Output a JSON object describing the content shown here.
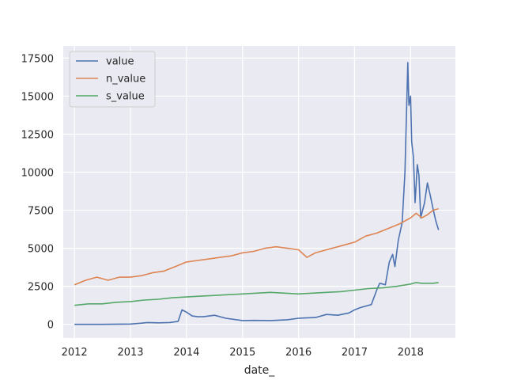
{
  "chart_data": {
    "type": "line",
    "title": "",
    "xlabel": "date_",
    "ylabel": "",
    "xlim": [
      2011.8,
      2018.8
    ],
    "ylim": [
      -900,
      18300
    ],
    "grid": true,
    "legend": "top-left",
    "x_ticks": [
      2012,
      2013,
      2014,
      2015,
      2016,
      2017,
      2018
    ],
    "x_tick_labels": [
      "2012",
      "2013",
      "2014",
      "2015",
      "2016",
      "2017",
      "2018"
    ],
    "y_ticks": [
      0,
      2500,
      5000,
      7500,
      10000,
      12500,
      15000,
      17500
    ],
    "y_tick_labels": [
      "0",
      "2500",
      "5000",
      "7500",
      "10000",
      "12500",
      "15000",
      "17500"
    ],
    "series": [
      {
        "name": "value",
        "color": "#4c72b0",
        "x": [
          2012.0,
          2012.5,
          2013.0,
          2013.2,
          2013.3,
          2013.5,
          2013.7,
          2013.85,
          2013.92,
          2014.0,
          2014.1,
          2014.2,
          2014.3,
          2014.5,
          2014.7,
          2015.0,
          2015.2,
          2015.5,
          2015.8,
          2016.0,
          2016.3,
          2016.5,
          2016.7,
          2016.9,
          2017.0,
          2017.1,
          2017.3,
          2017.4,
          2017.45,
          2017.55,
          2017.62,
          2017.68,
          2017.72,
          2017.78,
          2017.85,
          2017.9,
          2017.95,
          2017.97,
          2018.0,
          2018.02,
          2018.05,
          2018.08,
          2018.12,
          2018.15,
          2018.18,
          2018.25,
          2018.3,
          2018.35,
          2018.4,
          2018.45,
          2018.5
        ],
        "y": [
          0,
          0,
          20,
          80,
          120,
          100,
          120,
          200,
          950,
          800,
          550,
          500,
          500,
          600,
          400,
          250,
          260,
          250,
          300,
          400,
          450,
          650,
          600,
          750,
          950,
          1100,
          1300,
          2300,
          2700,
          2600,
          4100,
          4600,
          3800,
          5500,
          6700,
          10000,
          17200,
          14400,
          15000,
          12000,
          11000,
          8000,
          10500,
          9800,
          7000,
          8000,
          9300,
          8500,
          7600,
          6800,
          6200
        ]
      },
      {
        "name": "n_value",
        "color": "#dd8452",
        "x": [
          2012.0,
          2012.2,
          2012.4,
          2012.6,
          2012.8,
          2013.0,
          2013.2,
          2013.4,
          2013.6,
          2013.8,
          2014.0,
          2014.2,
          2014.4,
          2014.6,
          2014.8,
          2015.0,
          2015.2,
          2015.4,
          2015.6,
          2015.8,
          2016.0,
          2016.15,
          2016.3,
          2016.5,
          2016.7,
          2016.9,
          2017.0,
          2017.2,
          2017.4,
          2017.6,
          2017.8,
          2018.0,
          2018.1,
          2018.2,
          2018.3,
          2018.4,
          2018.5
        ],
        "y": [
          2600,
          2900,
          3100,
          2900,
          3100,
          3100,
          3200,
          3400,
          3500,
          3800,
          4100,
          4200,
          4300,
          4400,
          4500,
          4700,
          4800,
          5000,
          5100,
          5000,
          4900,
          4400,
          4700,
          4900,
          5100,
          5300,
          5400,
          5800,
          6000,
          6300,
          6600,
          7000,
          7300,
          7000,
          7200,
          7500,
          7600
        ]
      },
      {
        "name": "s_value",
        "color": "#55a868",
        "x": [
          2012.0,
          2012.25,
          2012.5,
          2012.75,
          2013.0,
          2013.25,
          2013.5,
          2013.75,
          2014.0,
          2014.25,
          2014.5,
          2014.75,
          2015.0,
          2015.25,
          2015.5,
          2015.75,
          2016.0,
          2016.25,
          2016.5,
          2016.75,
          2017.0,
          2017.25,
          2017.5,
          2017.75,
          2018.0,
          2018.1,
          2018.2,
          2018.3,
          2018.4,
          2018.5
        ],
        "y": [
          1250,
          1350,
          1350,
          1450,
          1500,
          1600,
          1650,
          1750,
          1800,
          1850,
          1900,
          1950,
          2000,
          2050,
          2100,
          2050,
          2000,
          2050,
          2100,
          2150,
          2250,
          2350,
          2400,
          2500,
          2650,
          2750,
          2700,
          2700,
          2700,
          2750
        ]
      }
    ]
  }
}
